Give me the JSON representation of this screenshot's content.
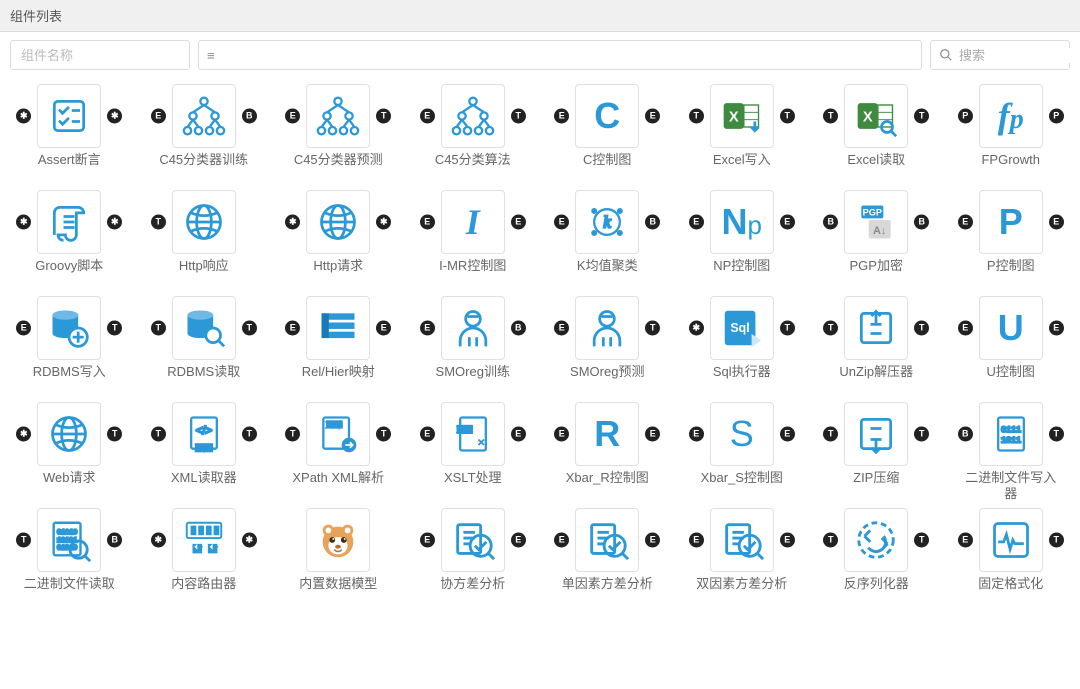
{
  "colors": {
    "icon_blue": "#2b98d8",
    "icon_green": "#3e8a3e",
    "badge_bg": "#222222",
    "border": "#e0e0e0",
    "title_bg": "#f0f0f0"
  },
  "header": {
    "title": "组件列表"
  },
  "toolbar": {
    "name_placeholder": "组件名称",
    "filter_icon": "≡",
    "search_placeholder": "搜索"
  },
  "badges": {
    "star": "✱",
    "E": "E",
    "T": "T",
    "B": "B",
    "P": "P"
  },
  "components": [
    {
      "label": "Assert断言",
      "icon": "assert",
      "left": "star",
      "right": "star"
    },
    {
      "label": "C45分类器训练",
      "icon": "tree",
      "left": "E",
      "right": "B"
    },
    {
      "label": "C45分类器预测",
      "icon": "tree",
      "left": "E",
      "right": "T"
    },
    {
      "label": "C45分类算法",
      "icon": "tree",
      "left": "E",
      "right": "T"
    },
    {
      "label": "C控制图",
      "icon": "C",
      "left": "E",
      "right": "E"
    },
    {
      "label": "Excel写入",
      "icon": "excel-down",
      "left": "T",
      "right": "T"
    },
    {
      "label": "Excel读取",
      "icon": "excel-search",
      "left": "T",
      "right": "T"
    },
    {
      "label": "FPGrowth",
      "icon": "fp",
      "left": "P",
      "right": "P"
    },
    {
      "label": "Groovy脚本",
      "icon": "scroll",
      "left": "star",
      "right": "star"
    },
    {
      "label": "Http响应",
      "icon": "globe",
      "left": "T",
      "right": ""
    },
    {
      "label": "Http请求",
      "icon": "globe",
      "left": "star",
      "right": "star"
    },
    {
      "label": "I-MR控制图",
      "icon": "I",
      "left": "E",
      "right": "E"
    },
    {
      "label": "K均值聚类",
      "icon": "kmeans",
      "left": "E",
      "right": "B"
    },
    {
      "label": "NP控制图",
      "icon": "Np",
      "left": "E",
      "right": "E"
    },
    {
      "label": "PGP加密",
      "icon": "pgp",
      "left": "B",
      "right": "B"
    },
    {
      "label": "P控制图",
      "icon": "P",
      "left": "E",
      "right": "E"
    },
    {
      "label": "RDBMS写入",
      "icon": "db-plus",
      "left": "E",
      "right": "T"
    },
    {
      "label": "RDBMS读取",
      "icon": "db-search",
      "left": "T",
      "right": "T"
    },
    {
      "label": "Rel/Hier映射",
      "icon": "rows",
      "left": "E",
      "right": "E"
    },
    {
      "label": "SMOreg训练",
      "icon": "person",
      "left": "E",
      "right": "B"
    },
    {
      "label": "SMOreg预测",
      "icon": "person",
      "left": "E",
      "right": "T"
    },
    {
      "label": "Sql执行器",
      "icon": "sql",
      "left": "star",
      "right": "T"
    },
    {
      "label": "UnZip解压器",
      "icon": "unzip",
      "left": "T",
      "right": "T"
    },
    {
      "label": "U控制图",
      "icon": "U",
      "left": "E",
      "right": "E"
    },
    {
      "label": "Web请求",
      "icon": "globe",
      "left": "star",
      "right": "T"
    },
    {
      "label": "XML读取器",
      "icon": "xml",
      "left": "T",
      "right": "T"
    },
    {
      "label": "XPath XML解析",
      "icon": "xlm",
      "left": "T",
      "right": "T"
    },
    {
      "label": "XSLT处理",
      "icon": "xsl",
      "left": "E",
      "right": "E"
    },
    {
      "label": "Xbar_R控制图",
      "icon": "R",
      "left": "E",
      "right": "E"
    },
    {
      "label": "Xbar_S控制图",
      "icon": "S",
      "left": "E",
      "right": "E"
    },
    {
      "label": "ZIP压缩",
      "icon": "zip",
      "left": "T",
      "right": "T"
    },
    {
      "label": "二进制文件写入器",
      "icon": "bin",
      "left": "B",
      "right": "T"
    },
    {
      "label": "二进制文件读取",
      "icon": "bin-search",
      "left": "T",
      "right": "B"
    },
    {
      "label": "内容路由器",
      "icon": "router",
      "left": "star",
      "right": "star"
    },
    {
      "label": "内置数据模型",
      "icon": "squirrel",
      "left": "",
      "right": ""
    },
    {
      "label": "协方差分析",
      "icon": "analysis-cov",
      "left": "E",
      "right": "E"
    },
    {
      "label": "单因素方差分析",
      "icon": "analysis-one",
      "left": "E",
      "right": "E"
    },
    {
      "label": "双因素方差分析",
      "icon": "analysis-two",
      "left": "E",
      "right": "E"
    },
    {
      "label": "反序列化器",
      "icon": "deserialize",
      "left": "T",
      "right": "T"
    },
    {
      "label": "固定格式化",
      "icon": "heartbeat",
      "left": "E",
      "right": "T"
    }
  ]
}
